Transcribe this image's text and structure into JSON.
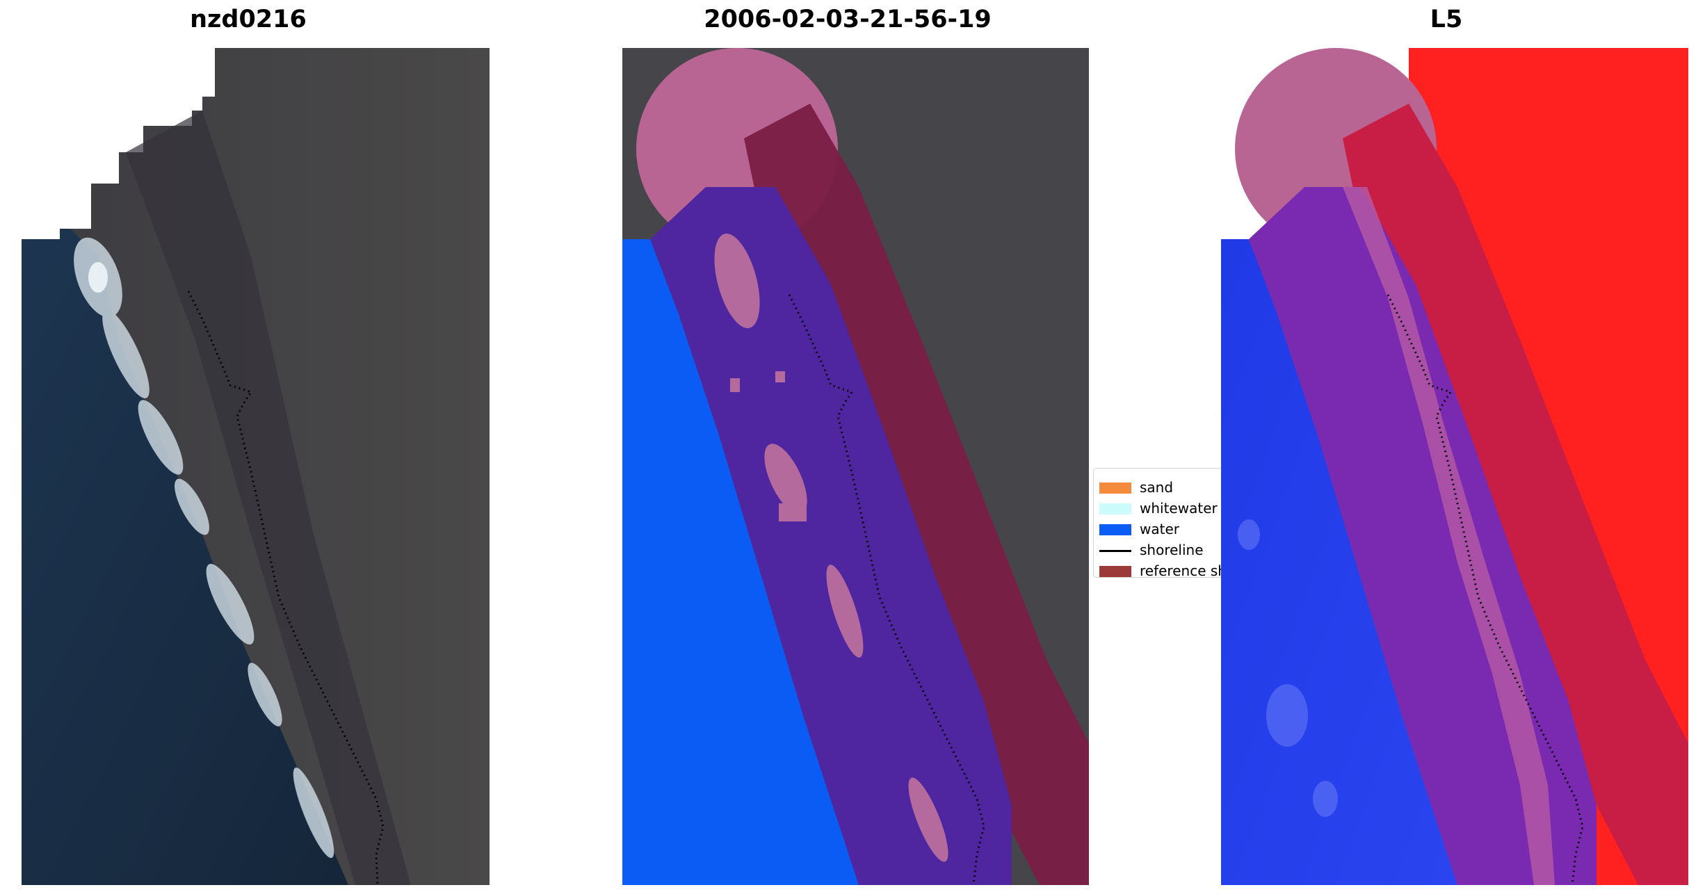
{
  "panels": [
    {
      "title": "nzd0216"
    },
    {
      "title": "2006-02-03-21-56-19"
    },
    {
      "title": "L5"
    }
  ],
  "legend": {
    "items": [
      {
        "label": "sand",
        "color": "#f48a3c",
        "kind": "patch"
      },
      {
        "label": "whitewater",
        "color": "#ccfbfb",
        "kind": "patch"
      },
      {
        "label": "water",
        "color": "#0b5cf4",
        "kind": "patch"
      },
      {
        "label": "shoreline",
        "color": "#000000",
        "kind": "line"
      },
      {
        "label": "reference shoreline buffer",
        "color": "#9c3a3a",
        "kind": "patch"
      }
    ]
  },
  "colors": {
    "ocean": "#1e3347",
    "land": "#48474a",
    "whitewater_foam": "#c8d4dc",
    "water_class": "#0b5cf4",
    "purple_overlay": "#5a2aa0",
    "maroon_buffer": "#7a1e45",
    "pink_circle": "#b96593",
    "red_land": "#ff1a1a",
    "blue_water_index": "#2244ee"
  }
}
